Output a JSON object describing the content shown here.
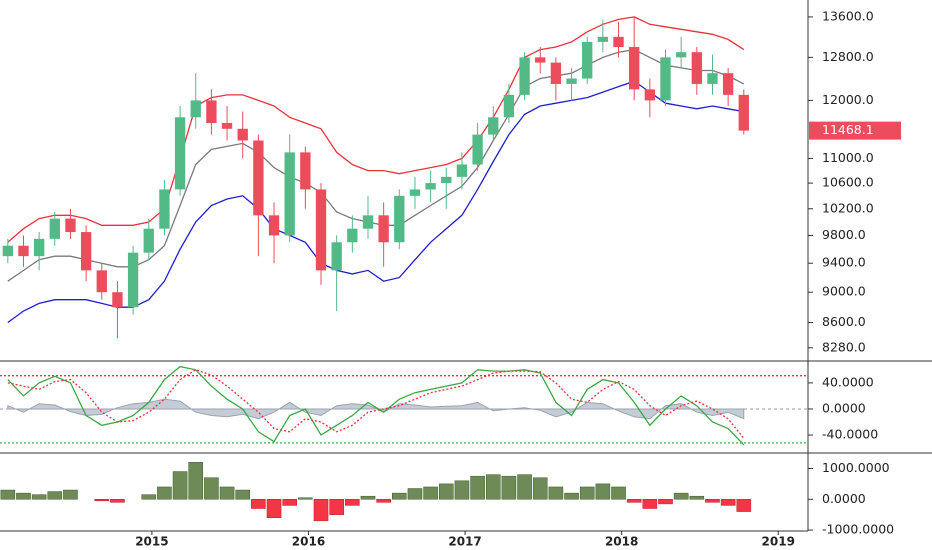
{
  "chart_data": [
    {
      "type": "candlestick",
      "log_scale": true,
      "up_color": "#53b987",
      "down_color": "#eb4d5c",
      "x": [
        2014.08,
        2014.18,
        2014.28,
        2014.38,
        2014.48,
        2014.58,
        2014.68,
        2014.78,
        2014.88,
        2014.98,
        2015.08,
        2015.18,
        2015.28,
        2015.38,
        2015.48,
        2015.58,
        2015.68,
        2015.78,
        2015.88,
        2015.98,
        2016.08,
        2016.18,
        2016.28,
        2016.38,
        2016.48,
        2016.58,
        2016.68,
        2016.78,
        2016.88,
        2016.98,
        2017.08,
        2017.18,
        2017.28,
        2017.38,
        2017.48,
        2017.58,
        2017.68,
        2017.78,
        2017.88,
        2017.98,
        2018.08,
        2018.18,
        2018.28,
        2018.38,
        2018.48,
        2018.58,
        2018.68,
        2018.78
      ],
      "open": [
        9500,
        9650,
        9500,
        9750,
        10050,
        9850,
        9300,
        9000,
        8800,
        9550,
        9900,
        10500,
        11700,
        12000,
        11600,
        11500,
        11300,
        10100,
        9800,
        11100,
        10500,
        9300,
        9700,
        9900,
        10100,
        9700,
        10400,
        10500,
        10600,
        10700,
        10900,
        11400,
        11700,
        12100,
        12800,
        12700,
        12300,
        12400,
        13100,
        13200,
        13000,
        12200,
        12000,
        12800,
        12900,
        12300,
        12500,
        12100
      ],
      "high": [
        9750,
        9800,
        9850,
        10150,
        10200,
        9950,
        9400,
        9150,
        9650,
        10050,
        10650,
        11900,
        12500,
        12200,
        11900,
        11800,
        11400,
        10300,
        11400,
        11200,
        10600,
        9800,
        10100,
        10400,
        10300,
        10500,
        10700,
        10800,
        10850,
        11100,
        11600,
        11900,
        12300,
        12900,
        13000,
        12800,
        12600,
        13200,
        13550,
        13500,
        13600,
        12400,
        12950,
        13200,
        13000,
        12850,
        12600,
        12200
      ],
      "low": [
        9400,
        9350,
        9300,
        9650,
        9750,
        9150,
        8900,
        8400,
        8700,
        9450,
        9800,
        10400,
        11500,
        11400,
        11300,
        11000,
        9500,
        9400,
        9700,
        10200,
        9100,
        8750,
        9550,
        9750,
        9350,
        9600,
        10200,
        10300,
        10200,
        10500,
        10800,
        11300,
        11600,
        12000,
        12500,
        12000,
        12000,
        12300,
        12900,
        12800,
        12000,
        11700,
        11900,
        12600,
        12100,
        12100,
        11900,
        11400
      ],
      "close": [
        9650,
        9500,
        9750,
        10050,
        9850,
        9300,
        9000,
        8800,
        9550,
        9900,
        10500,
        11700,
        12000,
        11600,
        11500,
        11300,
        10100,
        9800,
        11100,
        10500,
        9300,
        9700,
        9900,
        10100,
        9700,
        10400,
        10500,
        10600,
        10700,
        10900,
        11400,
        11700,
        12100,
        12800,
        12700,
        12300,
        12400,
        13100,
        13200,
        13000,
        12200,
        12000,
        12800,
        12900,
        12300,
        12500,
        12100,
        11468.1
      ],
      "series": [
        {
          "color": "#e8323c",
          "values": [
            9700,
            9900,
            10050,
            10100,
            10100,
            10050,
            9950,
            9950,
            9950,
            10000,
            10200,
            11000,
            11900,
            12050,
            12100,
            12100,
            12000,
            11900,
            11700,
            11600,
            11500,
            11100,
            10900,
            10800,
            10800,
            10750,
            10800,
            10850,
            10900,
            11000,
            11300,
            11700,
            12200,
            12800,
            12950,
            13000,
            13100,
            13300,
            13450,
            13550,
            13600,
            13450,
            13400,
            13350,
            13300,
            13250,
            13150,
            12950
          ]
        },
        {
          "color": "#7a7a7a",
          "values": [
            9150,
            9300,
            9450,
            9500,
            9500,
            9450,
            9400,
            9350,
            9350,
            9450,
            9650,
            10250,
            10900,
            11150,
            11200,
            11250,
            11100,
            10850,
            10700,
            10600,
            10450,
            10150,
            10050,
            10000,
            9950,
            9950,
            10100,
            10250,
            10400,
            10550,
            10850,
            11300,
            11750,
            12250,
            12400,
            12450,
            12500,
            12650,
            12800,
            12900,
            12950,
            12800,
            12650,
            12600,
            12550,
            12550,
            12450,
            12300
          ]
        },
        {
          "color": "#1f1fd0",
          "values": [
            8600,
            8750,
            8850,
            8900,
            8900,
            8900,
            8850,
            8800,
            8800,
            8900,
            9150,
            9600,
            10000,
            10250,
            10350,
            10400,
            10200,
            9900,
            9800,
            9700,
            9400,
            9300,
            9250,
            9300,
            9150,
            9200,
            9450,
            9700,
            9900,
            10100,
            10500,
            10950,
            11400,
            11750,
            11900,
            11950,
            12000,
            12050,
            12150,
            12250,
            12350,
            12150,
            11950,
            11900,
            11850,
            11900,
            11850,
            11800
          ]
        }
      ],
      "ylim": [
        8130,
        13950
      ],
      "yticks": [
        {
          "value": 13600,
          "label": "13600.0"
        },
        {
          "value": 12800,
          "label": "12800.0"
        },
        {
          "value": 12000,
          "label": "12000.0"
        },
        {
          "value": 11000,
          "label": "11000.0"
        },
        {
          "value": 10600,
          "label": "10600.0"
        },
        {
          "value": 10200,
          "label": "10200.0"
        },
        {
          "value": 9800,
          "label": "9800.0"
        },
        {
          "value": 9400,
          "label": "9400.0"
        },
        {
          "value": 9000,
          "label": "9000.0"
        },
        {
          "value": 8600,
          "label": "8600.0"
        },
        {
          "value": 8280,
          "label": "8280.0"
        }
      ]
    },
    {
      "type": "line",
      "series": [
        {
          "color": "#3aa845",
          "values": [
            45,
            20,
            40,
            50,
            40,
            -10,
            -25,
            -20,
            -10,
            10,
            45,
            65,
            60,
            35,
            15,
            0,
            -35,
            -50,
            -10,
            0,
            -40,
            -25,
            -10,
            10,
            -5,
            15,
            25,
            30,
            35,
            40,
            60,
            58,
            58,
            60,
            55,
            10,
            -10,
            30,
            45,
            40,
            10,
            -25,
            0,
            20,
            5,
            -20,
            -30,
            -55
          ]
        },
        {
          "color": "#e8323c",
          "dashed": true,
          "values": [
            40,
            35,
            30,
            42,
            45,
            25,
            -5,
            -20,
            -18,
            -5,
            15,
            45,
            60,
            52,
            35,
            15,
            -5,
            -30,
            -35,
            -15,
            -20,
            -35,
            -25,
            -5,
            0,
            5,
            15,
            25,
            30,
            35,
            45,
            55,
            58,
            58,
            57,
            40,
            15,
            10,
            30,
            42,
            30,
            5,
            -10,
            5,
            12,
            0,
            -15,
            -45
          ]
        },
        {
          "color": "#b7bfcc",
          "area": true,
          "values": [
            5,
            -5,
            8,
            6,
            -4,
            -10,
            -8,
            2,
            8,
            10,
            15,
            12,
            -5,
            -10,
            -12,
            -8,
            -15,
            -5,
            10,
            -5,
            -10,
            5,
            8,
            6,
            -5,
            8,
            6,
            3,
            4,
            5,
            10,
            -3,
            0,
            2,
            -2,
            -12,
            -5,
            10,
            8,
            -3,
            -12,
            -15,
            5,
            8,
            -5,
            -10,
            -5,
            -15
          ]
        }
      ],
      "levels": [
        {
          "value": 51,
          "color": "#e8323c"
        },
        {
          "value": -52,
          "color": "#3aa845"
        }
      ],
      "ylim": [
        -66,
        72
      ],
      "yticks": [
        {
          "value": 40,
          "label": "40.0000"
        },
        {
          "value": 0,
          "label": "0.0000"
        },
        {
          "value": -40,
          "label": "-40.0000"
        }
      ]
    },
    {
      "type": "bar",
      "up_color": "#6e8b57",
      "down_color": "#f23645",
      "values": [
        300,
        200,
        150,
        250,
        300,
        0,
        -50,
        -100,
        0,
        150,
        400,
        900,
        1200,
        700,
        400,
        300,
        -300,
        -600,
        -200,
        50,
        -700,
        -500,
        -200,
        100,
        -100,
        200,
        350,
        400,
        500,
        600,
        750,
        800,
        750,
        800,
        700,
        400,
        200,
        400,
        500,
        400,
        -100,
        -300,
        -150,
        200,
        100,
        -100,
        -200,
        -400
      ],
      "ylim": [
        -1030,
        1470
      ],
      "yticks": [
        {
          "value": 1000,
          "label": "1000.0000"
        },
        {
          "value": 0,
          "label": "0.0000"
        },
        {
          "value": -1000,
          "label": "-1000.0000"
        }
      ],
      "xlim": [
        2014.03,
        2019.19
      ],
      "xticks": [
        2015,
        2016,
        2017,
        2018,
        2019
      ]
    }
  ]
}
